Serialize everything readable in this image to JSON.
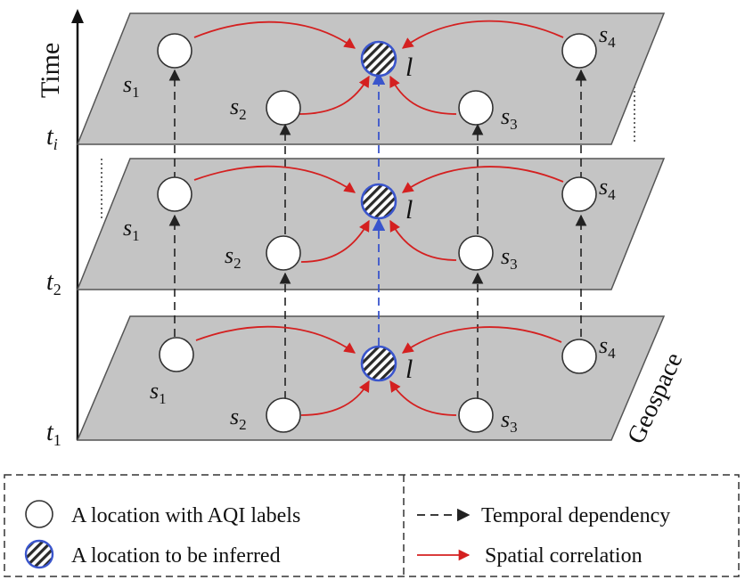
{
  "axes": {
    "time_label": "Time",
    "space_label": "Geospace",
    "time_ticks": [
      {
        "base": "t",
        "sub": "1"
      },
      {
        "base": "t",
        "sub": "2"
      },
      {
        "base": "t",
        "sub": "i"
      }
    ]
  },
  "layers": [
    {
      "time": "t1",
      "nodes": [
        {
          "id": "s1",
          "base": "s",
          "sub": "1"
        },
        {
          "id": "s2",
          "base": "s",
          "sub": "2"
        },
        {
          "id": "s3",
          "base": "s",
          "sub": "3"
        },
        {
          "id": "s4",
          "base": "s",
          "sub": "4"
        }
      ],
      "target": {
        "label": "l"
      }
    },
    {
      "time": "t2",
      "nodes": [
        {
          "id": "s1",
          "base": "s",
          "sub": "1"
        },
        {
          "id": "s2",
          "base": "s",
          "sub": "2"
        },
        {
          "id": "s3",
          "base": "s",
          "sub": "3"
        },
        {
          "id": "s4",
          "base": "s",
          "sub": "4"
        }
      ],
      "target": {
        "label": "l"
      }
    },
    {
      "time": "ti",
      "nodes": [
        {
          "id": "s1",
          "base": "s",
          "sub": "1"
        },
        {
          "id": "s2",
          "base": "s",
          "sub": "2"
        },
        {
          "id": "s3",
          "base": "s",
          "sub": "3"
        },
        {
          "id": "s4",
          "base": "s",
          "sub": "4"
        }
      ],
      "target": {
        "label": "l"
      }
    }
  ],
  "legend": {
    "labeled_location": "A location with AQI labels",
    "inferred_location": "A location to be inferred",
    "temporal_dependency": "Temporal dependency",
    "spatial_correlation": "Spatial correlation"
  },
  "colors": {
    "plane_fill": "#c4c4c4",
    "spatial_arrow": "#d42020",
    "temporal_arrow": "#222222",
    "inferred_arrow": "#3a55cc",
    "inferred_ring": "#3a55cc"
  }
}
